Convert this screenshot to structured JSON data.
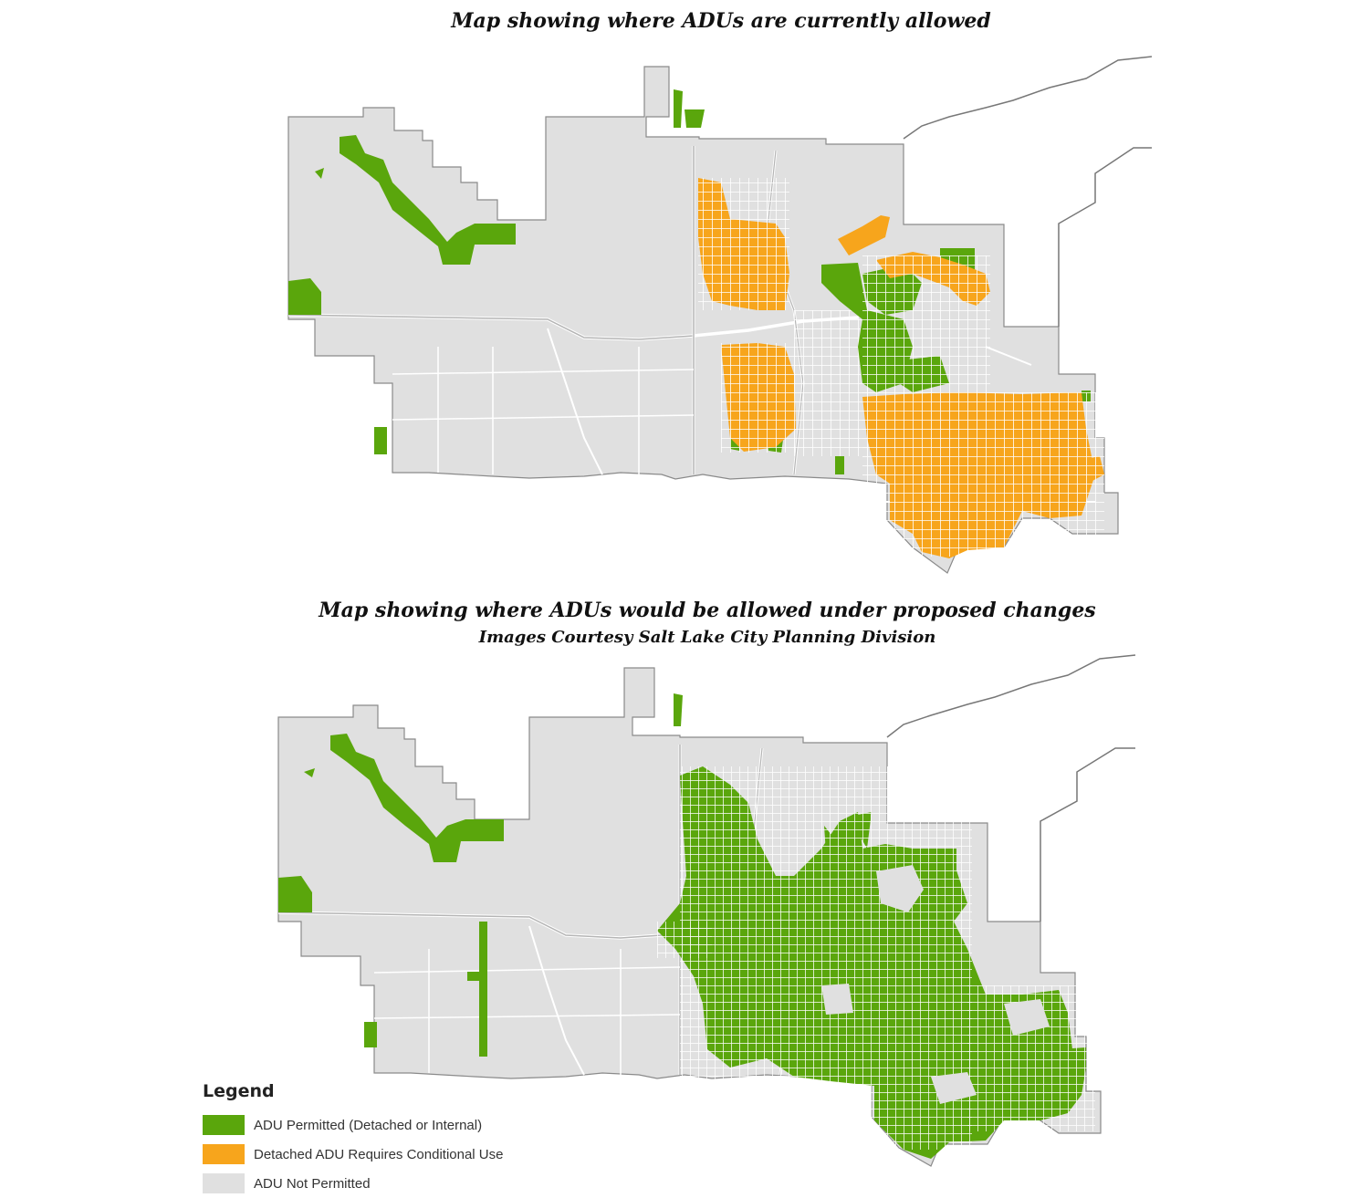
{
  "titles": {
    "current": "Map showing where ADUs are currently allowed",
    "proposed": "Map showing where ADUs would be allowed under proposed changes",
    "credit": "Images Courtesy Salt Lake City Planning Division"
  },
  "legend": {
    "title": "Legend",
    "items": [
      {
        "label": "ADU Permitted (Detached or Internal)",
        "color": "#5aa60c"
      },
      {
        "label": "Detached ADU Requires Conditional Use",
        "color": "#f7a51c"
      },
      {
        "label": "ADU Not Permitted",
        "color": "#e0e0e0"
      }
    ]
  },
  "colors": {
    "boundary": "#e0e0e0",
    "outline": "#8a8a8a",
    "roads": "#ffffff",
    "highways": "#b5b5b5"
  }
}
